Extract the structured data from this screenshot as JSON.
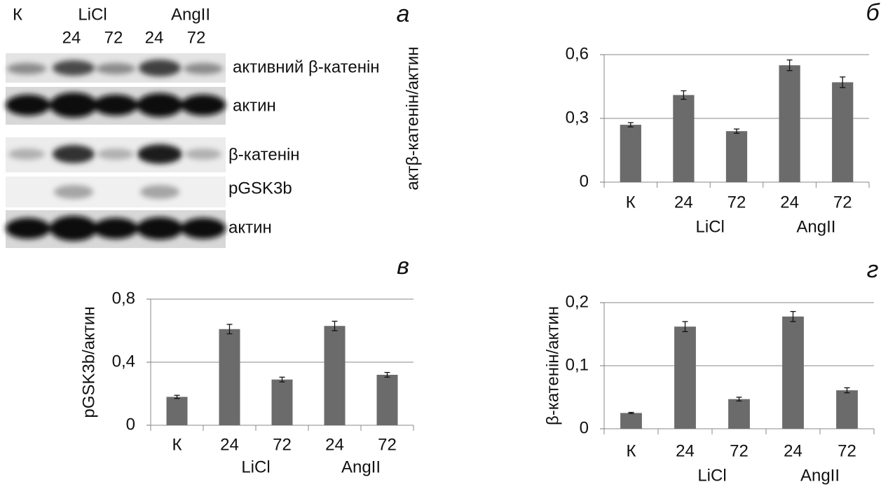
{
  "blot": {
    "panel": "а",
    "lanes": [
      "К",
      "LiCl",
      "AngII"
    ],
    "times": [
      "24",
      "72",
      "24",
      "72"
    ],
    "bands": [
      "активний β-катенін",
      "актин",
      "β-катенін",
      "pGSK3b",
      "актин"
    ]
  },
  "chart_data": [
    {
      "type": "bar",
      "panel": "б",
      "ylabel": "актβ-катенін/актин",
      "categories": [
        "К",
        "24",
        "72",
        "24",
        "72"
      ],
      "group_labels": [
        "LiCl",
        "AngII"
      ],
      "values": [
        0.27,
        0.41,
        0.24,
        0.55,
        0.47
      ],
      "errors": [
        0.01,
        0.02,
        0.01,
        0.025,
        0.025
      ],
      "color": "#6b6b6b",
      "ylim": [
        0,
        0.6
      ],
      "yticks": [
        0,
        {
          "value": 0.3,
          "label": "0,3"
        },
        {
          "value": 0.6,
          "label": "0,6"
        }
      ],
      "grid": true
    },
    {
      "type": "bar",
      "panel": "в",
      "ylabel": "pGSK3b/актин",
      "categories": [
        "К",
        "24",
        "72",
        "24",
        "72"
      ],
      "group_labels": [
        "LiCl",
        "AngII"
      ],
      "values": [
        0.18,
        0.61,
        0.29,
        0.63,
        0.32
      ],
      "errors": [
        0.01,
        0.03,
        0.015,
        0.03,
        0.015
      ],
      "color": "#6b6b6b",
      "ylim": [
        0,
        0.8
      ],
      "yticks": [
        0,
        {
          "value": 0.4,
          "label": "0,4"
        },
        {
          "value": 0.8,
          "label": "0,8"
        }
      ],
      "grid": true
    },
    {
      "type": "bar",
      "panel": "г",
      "ylabel": "β-катенін/актин",
      "categories": [
        "К",
        "24",
        "72",
        "24",
        "72"
      ],
      "group_labels": [
        "LiCl",
        "AngII"
      ],
      "values": [
        0.025,
        0.162,
        0.047,
        0.178,
        0.061
      ],
      "errors": [
        0.001,
        0.008,
        0.003,
        0.008,
        0.004
      ],
      "color": "#6b6b6b",
      "ylim": [
        0,
        0.2
      ],
      "yticks": [
        0,
        {
          "value": 0.1,
          "label": "0,1"
        },
        {
          "value": 0.2,
          "label": "0,2"
        }
      ],
      "grid": true
    }
  ]
}
